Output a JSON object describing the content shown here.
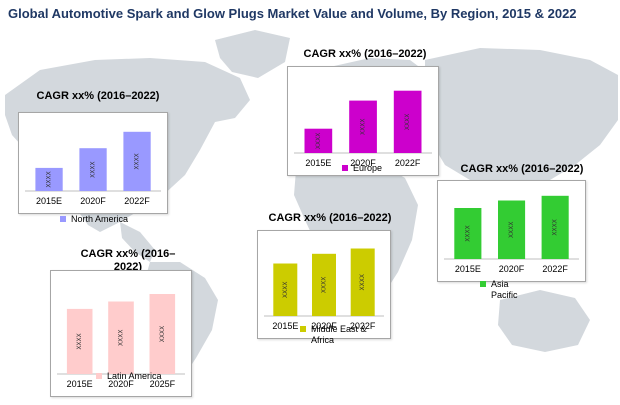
{
  "title": "Global Automotive Spark and Glow Plugs Market Value and Volume, By Region, 2015 & 2022",
  "chart_data": [
    {
      "type": "bar",
      "region": "north_america",
      "cagr_label": "CAGR xx% (2016–2022)",
      "categories": [
        "2015E",
        "2020F",
        "2022F"
      ],
      "values": [
        34,
        63,
        87
      ],
      "ylim": [
        0,
        100
      ],
      "bar_labels": [
        "XXXX",
        "XXXX",
        "XXXX"
      ],
      "legend": "North America",
      "color": "#9999ff"
    },
    {
      "type": "bar",
      "region": "europe",
      "cagr_label": "CAGR xx% (2016–2022)",
      "categories": [
        "2015E",
        "2020F",
        "2022F"
      ],
      "values": [
        32,
        69,
        82
      ],
      "ylim": [
        0,
        100
      ],
      "bar_labels": [
        "XXXX",
        "XXXX",
        "XXXX"
      ],
      "legend": "Europe",
      "color": "#cc00cc"
    },
    {
      "type": "bar",
      "region": "asia_pacific",
      "cagr_label": "CAGR xx% (2016–2022)",
      "categories": [
        "2015E",
        "2020F",
        "2022F"
      ],
      "values": [
        75,
        86,
        93
      ],
      "ylim": [
        0,
        100
      ],
      "bar_labels": [
        "XXXX",
        "XXXX",
        "XXXX"
      ],
      "legend": "Asia\nPacific",
      "color": "#33cc33"
    },
    {
      "type": "bar",
      "region": "middle_east_africa",
      "cagr_label": "CAGR xx% (2016–2022)",
      "categories": [
        "2015E",
        "2020F",
        "2022F"
      ],
      "values": [
        70,
        83,
        90
      ],
      "ylim": [
        0,
        100
      ],
      "bar_labels": [
        "XXXX",
        "XXXX",
        "XXXX"
      ],
      "legend": "Middle East &\nAfrica",
      "color": "#cccc00"
    },
    {
      "type": "bar",
      "region": "latin_america",
      "cagr_label": "CAGR xx% (2016–\n2022)",
      "categories": [
        "2015E",
        "2020F",
        "2025F"
      ],
      "values": [
        70,
        78,
        86
      ],
      "ylim": [
        0,
        100
      ],
      "bar_labels": [
        "XXXX",
        "XXXX",
        "XXXX"
      ],
      "legend": "Latin America",
      "color": "#ffcccc"
    }
  ]
}
